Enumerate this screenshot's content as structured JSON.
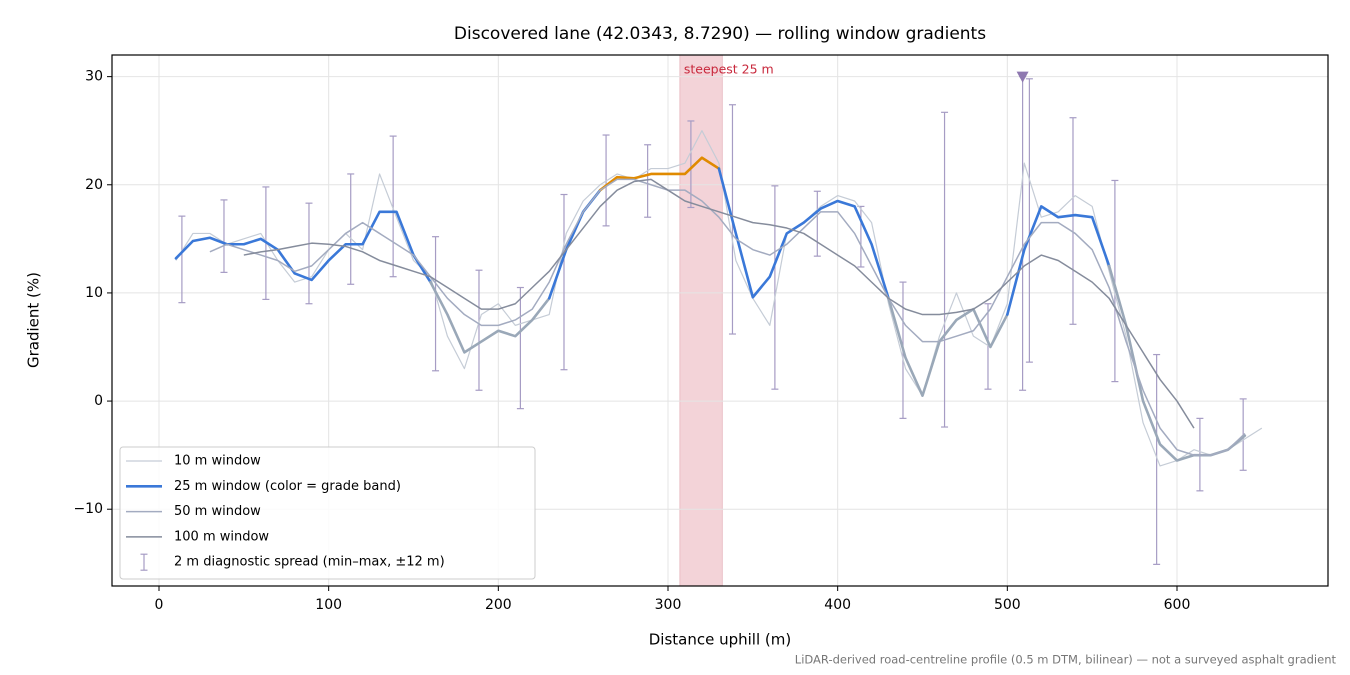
{
  "chart_data": {
    "type": "line",
    "title": "Discovered lane (42.0343, 8.7290) — rolling window gradients",
    "xlabel": "Distance uphill (m)",
    "ylabel": "Gradient (%)",
    "footnote": "LiDAR-derived road-centreline profile (0.5 m DTM, bilinear) — not a surveyed asphalt gradient",
    "xlim": [
      -27.7,
      689
    ],
    "ylim": [
      -17.1,
      32.0
    ],
    "xticks": [
      0,
      100,
      200,
      300,
      400,
      500,
      600
    ],
    "yticks": [
      {
        "value": -10,
        "label": "−10"
      },
      0,
      10,
      20,
      30
    ],
    "grid": true,
    "legend": "lower left",
    "x": [
      10,
      20,
      30,
      40,
      50,
      60,
      70,
      80,
      90,
      100,
      110,
      120,
      130,
      140,
      150,
      160,
      170,
      180,
      190,
      200,
      210,
      220,
      230,
      240,
      250,
      260,
      270,
      280,
      290,
      300,
      310,
      320,
      330,
      340,
      350,
      360,
      370,
      380,
      390,
      400,
      410,
      420,
      430,
      440,
      450,
      460,
      470,
      480,
      490,
      500,
      510,
      520,
      530,
      540,
      550,
      560,
      570,
      580,
      590,
      600,
      610,
      620,
      630,
      640,
      650
    ],
    "series": [
      {
        "name": "10 m window",
        "color": "#c5ccd6",
        "width": 1.2,
        "values": [
          13,
          15.5,
          15.5,
          14.5,
          15,
          15.5,
          13,
          11,
          11.5,
          14,
          15.5,
          14,
          21,
          17,
          13,
          11.5,
          6,
          3,
          8,
          9,
          7,
          7.5,
          8,
          15.5,
          18.5,
          20,
          21,
          20.5,
          21.5,
          21.5,
          22,
          25,
          22,
          13,
          9.5,
          7,
          15.5,
          16.5,
          18,
          19,
          18.5,
          16.5,
          9,
          3,
          0.5,
          6,
          10,
          6,
          5,
          9,
          22,
          17,
          17.5,
          19,
          18,
          12,
          6,
          -2,
          -6,
          -5.5,
          -4.5,
          -5,
          -4.5,
          -3.5,
          -2.5
        ]
      },
      {
        "name": "25 m window (color = grade band)",
        "color": "#3a78d8",
        "width": 2.6,
        "band_thresholds": [
          10,
          20
        ],
        "band_colors": [
          "#9aa8b8",
          "#3a78d8",
          "#e08a00"
        ],
        "values": [
          13.2,
          14.8,
          15.1,
          14.5,
          14.5,
          15,
          14,
          11.8,
          11.2,
          13,
          14.5,
          14.5,
          17.5,
          17.5,
          13.5,
          11,
          8,
          4.5,
          5.5,
          6.5,
          6,
          7.5,
          9.5,
          14,
          17.5,
          19.5,
          20.7,
          20.6,
          21,
          21,
          21,
          22.5,
          21.5,
          15.5,
          9.6,
          11.5,
          15.5,
          16.5,
          17.8,
          18.5,
          18,
          14.5,
          9.5,
          4,
          0.5,
          5.5,
          7.5,
          8.5,
          5,
          8,
          14,
          18,
          17,
          17.2,
          17,
          12.5,
          7,
          0,
          -4,
          -5.5,
          -5,
          -5,
          -4.5,
          -3.2,
          null
        ]
      },
      {
        "name": "50 m window",
        "color": "#a3abc0",
        "width": 1.5,
        "values": [
          null,
          null,
          13.8,
          14.5,
          14,
          13.5,
          13,
          12,
          12.5,
          14,
          15.5,
          16.5,
          15.5,
          14.5,
          13.5,
          11.5,
          9.5,
          8,
          7,
          7,
          7.5,
          8.5,
          11,
          14.5,
          17.5,
          19.5,
          20.5,
          20.5,
          20,
          19.5,
          19.5,
          18.5,
          17,
          15,
          14,
          13.5,
          14.5,
          16,
          17.5,
          17.5,
          15.5,
          12.5,
          9.5,
          7,
          5.5,
          5.5,
          6,
          6.5,
          8.5,
          11.5,
          14.5,
          16.5,
          16.5,
          15.5,
          14,
          10.5,
          5.5,
          1,
          -2.5,
          -4.5,
          -5,
          -5,
          -4.5,
          -3,
          null
        ]
      },
      {
        "name": "100 m window",
        "color": "#858c9c",
        "width": 1.5,
        "values": [
          null,
          null,
          null,
          null,
          13.5,
          13.8,
          14,
          14.3,
          14.6,
          14.5,
          14.3,
          13.8,
          13,
          12.5,
          12,
          11.5,
          10.5,
          9.5,
          8.5,
          8.5,
          9,
          10.5,
          12,
          14,
          16,
          18,
          19.5,
          20.3,
          20.5,
          19.5,
          18.5,
          18,
          17.5,
          17,
          16.5,
          16.3,
          16,
          15.5,
          14.5,
          13.5,
          12.5,
          11,
          9.5,
          8.5,
          8,
          8,
          8.2,
          8.5,
          9.5,
          11,
          12.5,
          13.5,
          13,
          12,
          11,
          9.5,
          7,
          4.5,
          2,
          0,
          -2.5,
          null,
          null,
          null,
          null
        ]
      }
    ],
    "errorbars": {
      "name": "2 m diagnostic spread (min–max, ±12 m)",
      "color": "#a69cc4",
      "x": [
        13.5,
        38.3,
        63,
        88.4,
        113,
        138,
        163,
        188.6,
        213,
        238.7,
        263.5,
        288,
        313.5,
        338,
        363,
        388,
        413.7,
        438.5,
        463,
        488.6,
        509,
        513,
        538.7,
        563.4,
        588,
        613.5,
        639
      ],
      "low": [
        9.1,
        11.9,
        9.4,
        9,
        10.8,
        11.5,
        2.8,
        1,
        -0.7,
        2.9,
        16.2,
        17,
        17.9,
        6.2,
        1.1,
        13.4,
        12.4,
        -1.6,
        -2.4,
        1.1,
        1,
        3.6,
        7.1,
        1.8,
        -15.1,
        -8.3,
        -6.4
      ],
      "high": [
        17.1,
        18.6,
        19.8,
        18.3,
        21,
        24.5,
        15.2,
        12.1,
        10.5,
        19.1,
        24.6,
        23.7,
        25.9,
        27.4,
        19.9,
        19.4,
        18,
        11,
        26.7,
        9,
        30,
        29.8,
        26.2,
        20.4,
        4.3,
        -1.6,
        0.2
      ]
    },
    "highlight_span": {
      "x": [
        307,
        332
      ],
      "label": "steepest 25 m",
      "color": "#f3d3d8",
      "label_color": "#c8283c"
    },
    "peak_marker": {
      "x": 509,
      "y": 30,
      "color": "#8e78b0"
    }
  }
}
